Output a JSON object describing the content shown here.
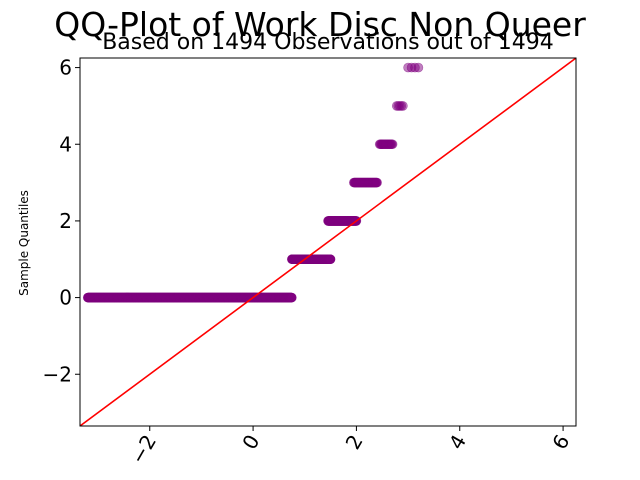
{
  "chart_data": {
    "type": "scatter",
    "title": "QQ-Plot of Work Disc Non Queer",
    "subtitle": "Based on 1494 Observations out of 1494",
    "xlabel": "",
    "ylabel": "Sample Quantiles",
    "xlim": [
      -3.35,
      6.25
    ],
    "ylim": [
      -3.35,
      6.25
    ],
    "x_ticks": [
      -2,
      0,
      2,
      4,
      6
    ],
    "y_ticks": [
      -2,
      0,
      2,
      4,
      6
    ],
    "x_tick_labels": [
      "−2",
      "0",
      "2",
      "4",
      "6"
    ],
    "y_tick_labels": [
      "−2",
      "0",
      "2",
      "4",
      "6"
    ],
    "grid": false,
    "colors": {
      "points": "#800080",
      "reference_line": "#ff0000"
    },
    "reference_line": {
      "slope": 1,
      "intercept": 0
    },
    "steps": [
      {
        "y": 0,
        "x_range": [
          -3.2,
          0.75
        ],
        "count": 1000
      },
      {
        "y": 1,
        "x_range": [
          0.75,
          1.5
        ],
        "count": 280
      },
      {
        "y": 2,
        "x_range": [
          1.45,
          2.0
        ],
        "count": 130
      },
      {
        "y": 3,
        "x_range": [
          1.95,
          2.4
        ],
        "count": 55
      },
      {
        "y": 4,
        "x_range": [
          2.45,
          2.7
        ],
        "count": 20
      },
      {
        "y": 5,
        "x_range": [
          2.78,
          2.9
        ],
        "count": 5
      },
      {
        "y": 6,
        "x_range": [
          3.0,
          3.2
        ],
        "count": 4
      }
    ]
  }
}
